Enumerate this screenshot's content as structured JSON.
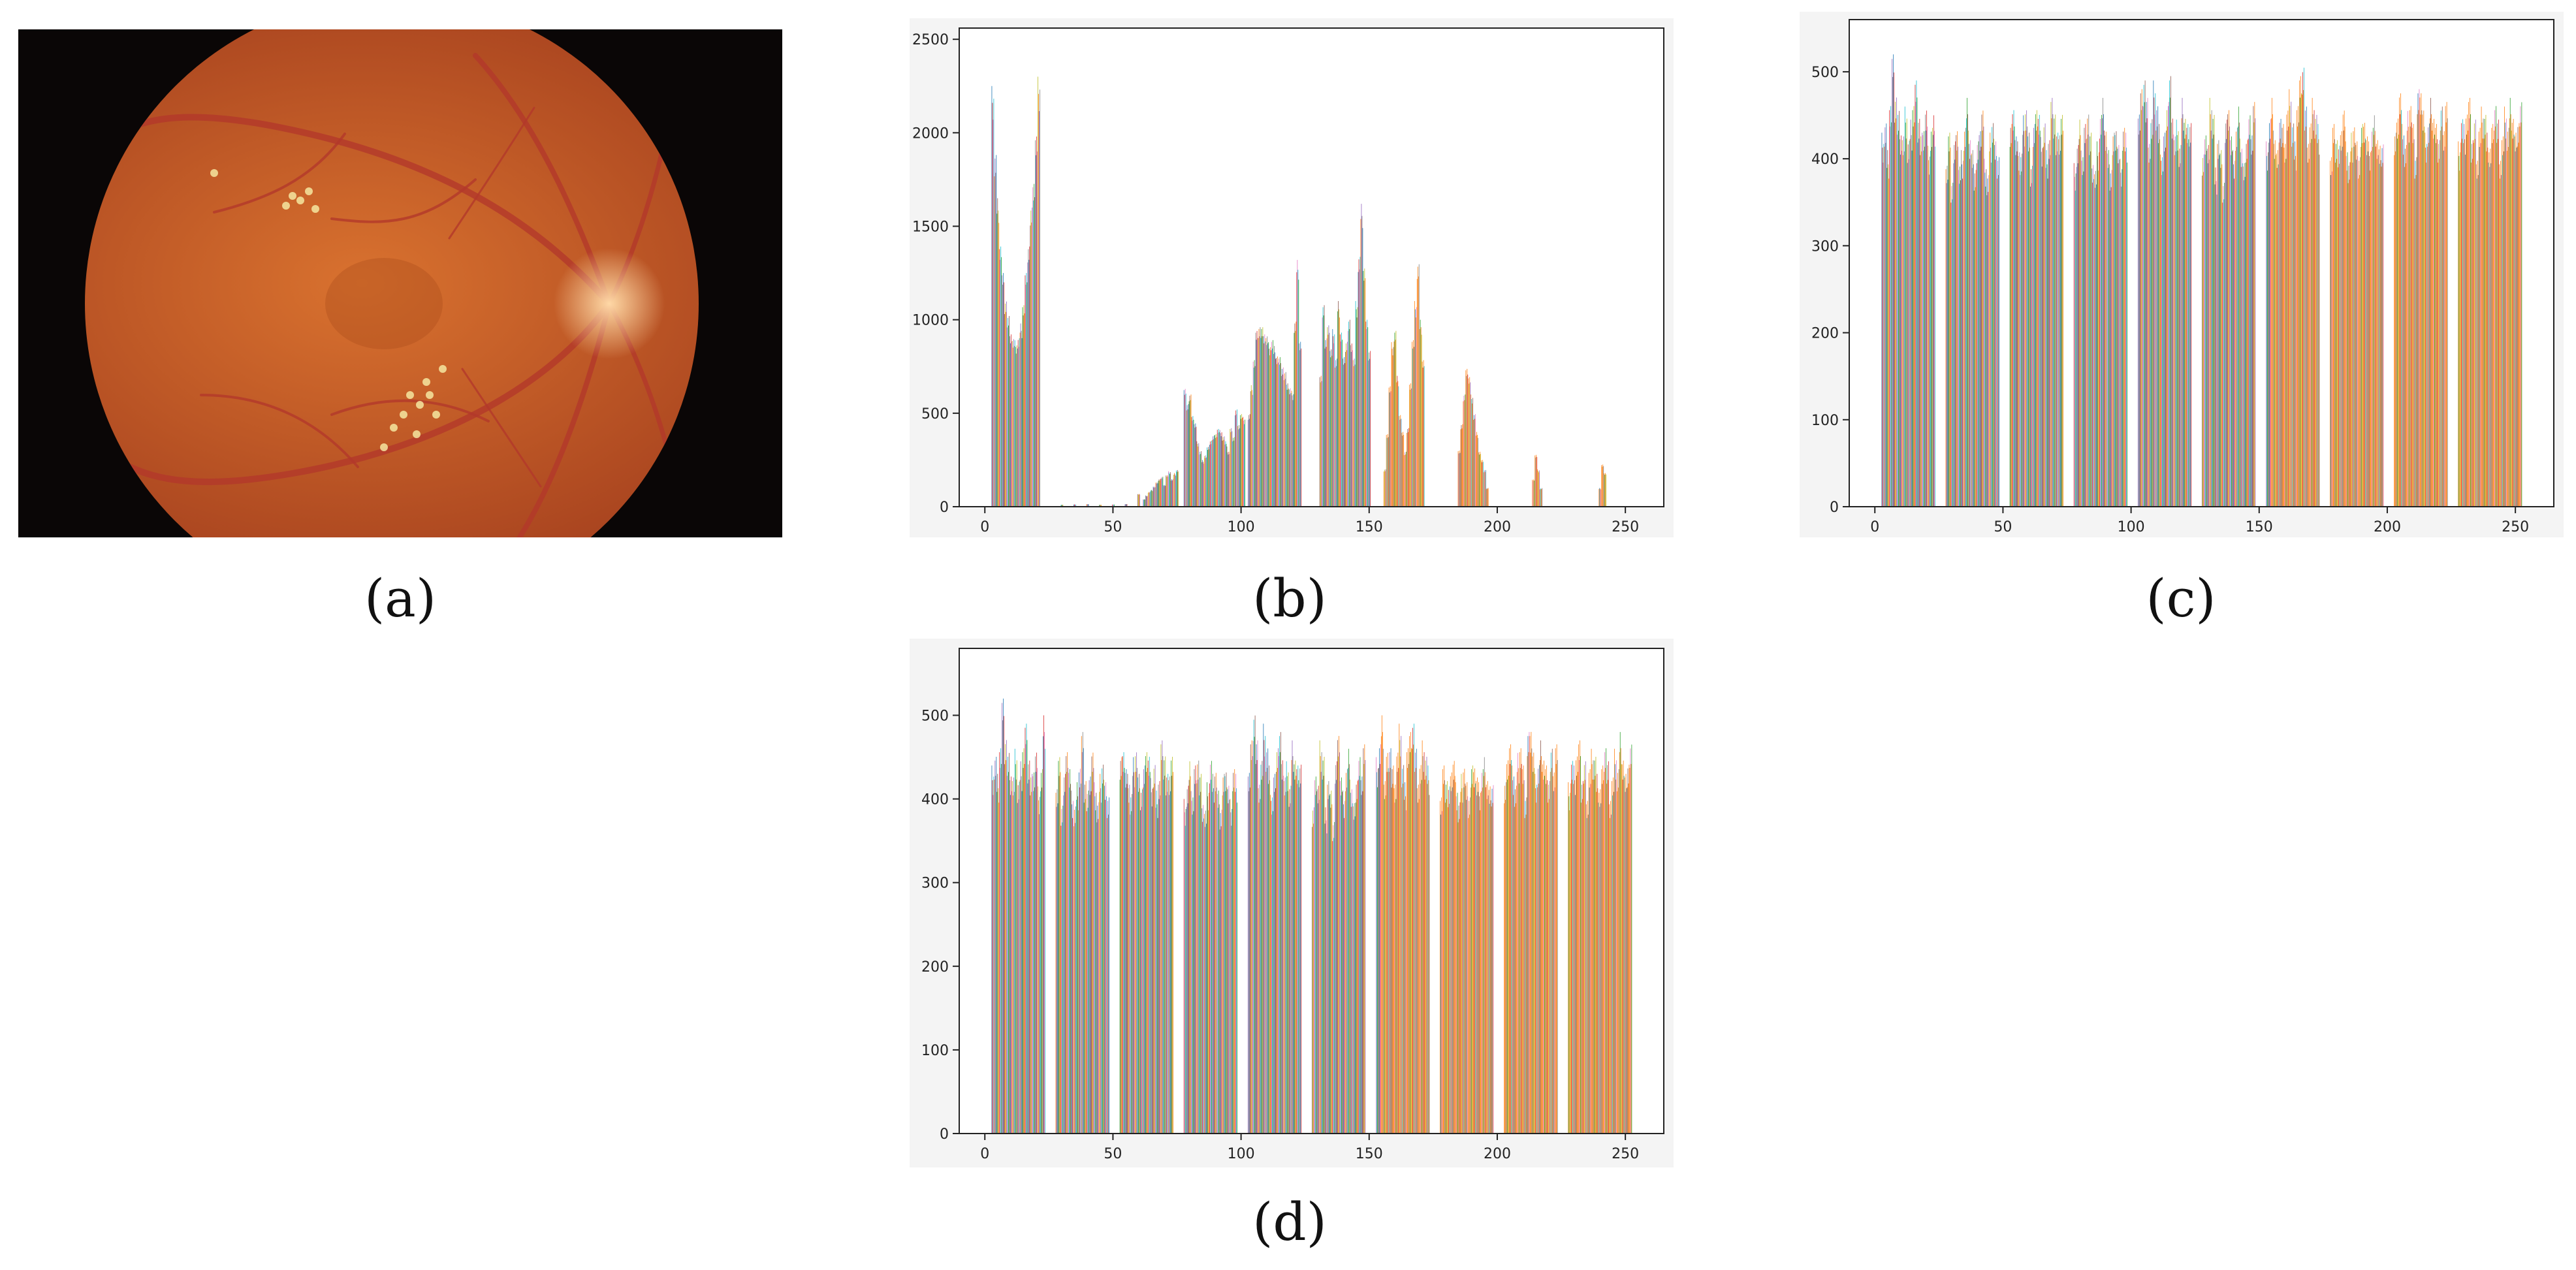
{
  "captions": {
    "a": "(a)",
    "b": "(b)",
    "c": "(c)",
    "d": "(d)"
  },
  "colors": {
    "fundus_background": "#0a0606",
    "fundus_base": "#d9722f",
    "fundus_edge": "#a8431f",
    "optic_disc": "#ffd9a6",
    "vessel": "#b3382a",
    "exudate": "#f4e6a0",
    "chart_panel_bg": "#f4f4f4",
    "series_palette": [
      "#1f77b4",
      "#ff7f0e",
      "#2ca02c",
      "#d62728",
      "#9467bd",
      "#8c564b",
      "#e377c2",
      "#7f7f7f",
      "#bcbd22",
      "#17becf"
    ]
  },
  "chart_data": [
    {
      "id": "b",
      "type": "bar",
      "xlim": [
        -10,
        265
      ],
      "ylim": [
        0,
        2560
      ],
      "xticks": [
        0,
        50,
        100,
        150,
        200,
        250
      ],
      "yticks": [
        0,
        500,
        1000,
        1500,
        2000,
        2500
      ],
      "grid": false,
      "x": [
        3,
        4,
        5,
        6,
        7,
        8,
        9,
        10,
        11,
        12,
        13,
        14,
        15,
        16,
        17,
        18,
        19,
        20,
        21,
        30,
        35,
        40,
        45,
        50,
        55,
        60,
        62,
        63,
        64,
        65,
        66,
        67,
        68,
        69,
        70,
        71,
        72,
        73,
        74,
        75,
        78,
        79,
        80,
        81,
        82,
        83,
        84,
        85,
        86,
        87,
        88,
        89,
        90,
        91,
        92,
        93,
        94,
        95,
        96,
        97,
        98,
        99,
        100,
        101,
        103,
        104,
        105,
        106,
        107,
        108,
        109,
        110,
        111,
        112,
        113,
        114,
        115,
        116,
        117,
        118,
        119,
        120,
        121,
        122,
        123,
        131,
        132,
        133,
        134,
        135,
        136,
        137,
        138,
        139,
        140,
        141,
        142,
        143,
        144,
        145,
        146,
        147,
        148,
        149,
        150,
        156,
        157,
        158,
        159,
        160,
        161,
        162,
        163,
        164,
        165,
        166,
        167,
        168,
        169,
        170,
        171,
        185,
        186,
        187,
        188,
        189,
        190,
        191,
        192,
        193,
        194,
        195,
        196,
        214,
        215,
        216,
        217,
        240,
        241,
        242
      ],
      "values": [
        2250,
        1900,
        1650,
        1420,
        1250,
        1120,
        1020,
        950,
        905,
        890,
        910,
        980,
        1100,
        1250,
        1420,
        1600,
        1780,
        2000,
        2300,
        10,
        12,
        14,
        10,
        12,
        14,
        70,
        40,
        60,
        80,
        90,
        110,
        130,
        150,
        160,
        120,
        170,
        190,
        150,
        180,
        200,
        630,
        560,
        600,
        500,
        450,
        350,
        300,
        250,
        280,
        320,
        360,
        380,
        400,
        420,
        410,
        380,
        350,
        300,
        420,
        380,
        520,
        450,
        500,
        480,
        500,
        650,
        800,
        940,
        980,
        960,
        950,
        920,
        880,
        900,
        860,
        820,
        800,
        760,
        720,
        680,
        640,
        620,
        1000,
        1320,
        900,
        700,
        1100,
        900,
        1000,
        850,
        950,
        800,
        1100,
        950,
        800,
        900,
        1000,
        900,
        800,
        1100,
        1350,
        1620,
        1300,
        1000,
        850,
        200,
        400,
        650,
        880,
        950,
        700,
        500,
        400,
        300,
        420,
        680,
        900,
        1100,
        1310,
        1000,
        800,
        300,
        450,
        600,
        760,
        700,
        600,
        500,
        400,
        300,
        250,
        200,
        100,
        150,
        280,
        200,
        100,
        100,
        230,
        180
      ]
    },
    {
      "id": "c",
      "type": "bar",
      "xlim": [
        -10,
        265
      ],
      "ylim": [
        0,
        560
      ],
      "xticks": [
        0,
        50,
        100,
        150,
        200,
        250
      ],
      "yticks": [
        0,
        100,
        200,
        300,
        400,
        500
      ],
      "grid": false,
      "groups": [
        [
          3,
          23
        ],
        [
          28,
          48
        ],
        [
          53,
          73
        ],
        [
          78,
          98
        ],
        [
          103,
          123
        ],
        [
          128,
          148
        ],
        [
          153,
          173
        ],
        [
          178,
          198
        ],
        [
          203,
          223
        ],
        [
          228,
          252
        ]
      ],
      "values": [
        430,
        445,
        410,
        470,
        520,
        480,
        455,
        440,
        430,
        460,
        425,
        445,
        470,
        490,
        455,
        430,
        445,
        460,
        415,
        440,
        450,
        400,
        430,
        380,
        420,
        445,
        395,
        410,
        440,
        470,
        430,
        410,
        395,
        420,
        445,
        460,
        400,
        385,
        430,
        450,
        420,
        410,
        440,
        470,
        430,
        420,
        410,
        450,
        465,
        430,
        400,
        440,
        470,
        455,
        425,
        445,
        410,
        430,
        470,
        460,
        430,
        440,
        455,
        395,
        420,
        445,
        410,
        440,
        460,
        430,
        405,
        390,
        420,
        455,
        470,
        440,
        410,
        395,
        430,
        445,
        420,
        400,
        440,
        430,
        460,
        480,
        500,
        470,
        430,
        450,
        490,
        465,
        440,
        410,
        430,
        470,
        495,
        460,
        430,
        445,
        420,
        470,
        455,
        440,
        450,
        405,
        440,
        420,
        470,
        455,
        390,
        430,
        410,
        380,
        445,
        470,
        430,
        410,
        440,
        460,
        420,
        395,
        430,
        450,
        440,
        470,
        420,
        450,
        470,
        430,
        410,
        455,
        440,
        430,
        460,
        480,
        445,
        420,
        470,
        495,
        515,
        460,
        430,
        445,
        470,
        455,
        440,
        410,
        440,
        430,
        415,
        445,
        460,
        420,
        400,
        430,
        445,
        420,
        410,
        440,
        455,
        430,
        420,
        440,
        450,
        430,
        415,
        425,
        430,
        460,
        480,
        440,
        420,
        455,
        470,
        440,
        410,
        480,
        490,
        460,
        430,
        445,
        470,
        455,
        440,
        430,
        460,
        445,
        470,
        420,
        450,
        440,
        460,
        470,
        430,
        445,
        410,
        440,
        460,
        455,
        430,
        420,
        440,
        470,
        445,
        410,
        430,
        460,
        440,
        470,
        455,
        430,
        450,
        465
      ]
    },
    {
      "id": "d",
      "type": "bar",
      "xlim": [
        -10,
        265
      ],
      "ylim": [
        0,
        580
      ],
      "xticks": [
        0,
        50,
        100,
        150,
        200,
        250
      ],
      "yticks": [
        0,
        100,
        200,
        300,
        400,
        500
      ],
      "grid": false,
      "groups": [
        [
          3,
          23
        ],
        [
          28,
          48
        ],
        [
          53,
          73
        ],
        [
          78,
          98
        ],
        [
          103,
          123
        ],
        [
          128,
          148
        ],
        [
          153,
          173
        ],
        [
          178,
          198
        ],
        [
          203,
          223
        ],
        [
          228,
          252
        ]
      ],
      "values": [
        440,
        455,
        430,
        470,
        520,
        480,
        455,
        440,
        430,
        460,
        425,
        445,
        470,
        490,
        455,
        430,
        445,
        460,
        415,
        440,
        500,
        420,
        450,
        400,
        430,
        470,
        440,
        410,
        395,
        420,
        445,
        480,
        430,
        410,
        440,
        460,
        420,
        400,
        430,
        450,
        420,
        410,
        450,
        470,
        440,
        430,
        410,
        450,
        465,
        430,
        420,
        440,
        470,
        455,
        425,
        445,
        410,
        430,
        470,
        460,
        430,
        440,
        455,
        400,
        420,
        445,
        410,
        440,
        455,
        430,
        405,
        390,
        420,
        450,
        430,
        440,
        410,
        395,
        430,
        445,
        420,
        400,
        440,
        430,
        440,
        470,
        510,
        470,
        430,
        450,
        490,
        465,
        440,
        410,
        430,
        470,
        480,
        460,
        430,
        445,
        420,
        470,
        455,
        440,
        450,
        390,
        440,
        420,
        470,
        455,
        390,
        430,
        410,
        380,
        445,
        490,
        430,
        410,
        440,
        460,
        420,
        395,
        430,
        450,
        440,
        470,
        450,
        470,
        500,
        430,
        455,
        470,
        440,
        430,
        460,
        490,
        445,
        420,
        470,
        480,
        500,
        460,
        430,
        445,
        470,
        455,
        440,
        410,
        440,
        430,
        415,
        445,
        450,
        420,
        400,
        430,
        445,
        420,
        410,
        440,
        450,
        430,
        420,
        440,
        450,
        430,
        415,
        425,
        420,
        460,
        470,
        440,
        420,
        455,
        470,
        440,
        410,
        480,
        495,
        460,
        430,
        445,
        470,
        455,
        440,
        430,
        460,
        445,
        470,
        420,
        450,
        440,
        460,
        470,
        430,
        445,
        410,
        440,
        460,
        455,
        430,
        420,
        440,
        470,
        445,
        410,
        430,
        460,
        440,
        480,
        455,
        430,
        450,
        465
      ]
    }
  ]
}
